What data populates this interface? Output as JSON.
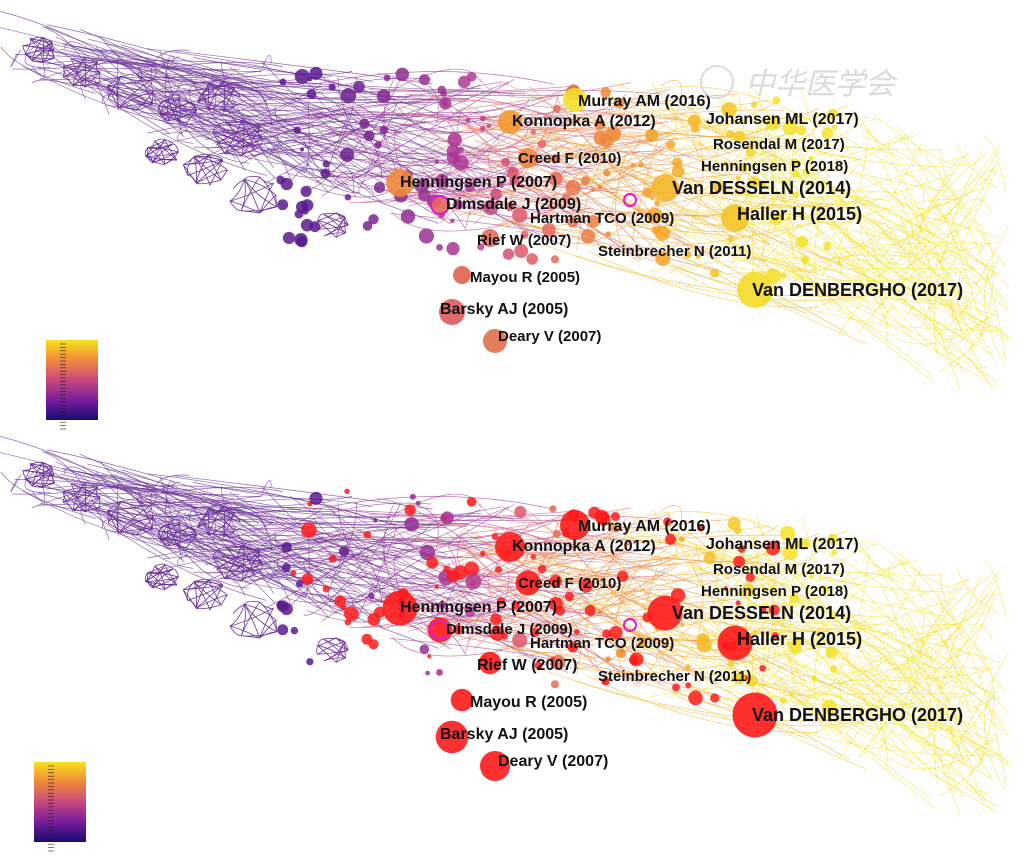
{
  "figure": {
    "watermark": "中华医学会",
    "palette": {
      "purple": "#5b1a8e",
      "magenta": "#b23a93",
      "coral": "#e0566a",
      "orange": "#f59a23",
      "yellow": "#f4e22a",
      "burst_red": "#ff1a1a",
      "label_text": "#111111",
      "watermark": "#d7d7d7"
    },
    "colorbar": {
      "gradient": [
        "#f7e11c",
        "#f08a3c",
        "#c7487d",
        "#7a1d9c",
        "#180b71"
      ]
    },
    "labels": [
      {
        "text": "Murray AM (2016)",
        "size_top": "large",
        "size_bottom": "large"
      },
      {
        "text": "Konnopka A (2012)",
        "size_top": "large",
        "size_bottom": "large"
      },
      {
        "text": "Johansen ML (2017)",
        "size_top": "large",
        "size_bottom": "large"
      },
      {
        "text": "Rosendal M (2017)",
        "size_top": "medium",
        "size_bottom": "medium"
      },
      {
        "text": "Henningsen P (2018)",
        "size_top": "medium",
        "size_bottom": "medium"
      },
      {
        "text": "Creed F (2010)",
        "size_top": "medium",
        "size_bottom": "medium"
      },
      {
        "text": "Henningsen P (2007)",
        "size_top": "large",
        "size_bottom": "large"
      },
      {
        "text": "Van DESSELN (2014)",
        "size_top": "xlarge",
        "size_bottom": "xlarge"
      },
      {
        "text": "Dimsdale J (2009)",
        "size_top": "large",
        "size_bottom": "medium"
      },
      {
        "text": "Haller H (2015)",
        "size_top": "xlarge",
        "size_bottom": "xlarge"
      },
      {
        "text": "Hartman TCO (2009)",
        "size_top": "medium",
        "size_bottom": "medium"
      },
      {
        "text": "Rief W (2007)",
        "size_top": "medium",
        "size_bottom": "large"
      },
      {
        "text": "Steinbrecher N (2011)",
        "size_top": "medium",
        "size_bottom": "medium"
      },
      {
        "text": "Mayou R (2005)",
        "size_top": "medium",
        "size_bottom": "large"
      },
      {
        "text": "Van DENBERGHO (2017)",
        "size_top": "xlarge",
        "size_bottom": "xlarge"
      },
      {
        "text": "Barsky AJ (2005)",
        "size_top": "large",
        "size_bottom": "large"
      },
      {
        "text": "Deary V (2007)",
        "size_top": "medium",
        "size_bottom": "large"
      }
    ]
  }
}
